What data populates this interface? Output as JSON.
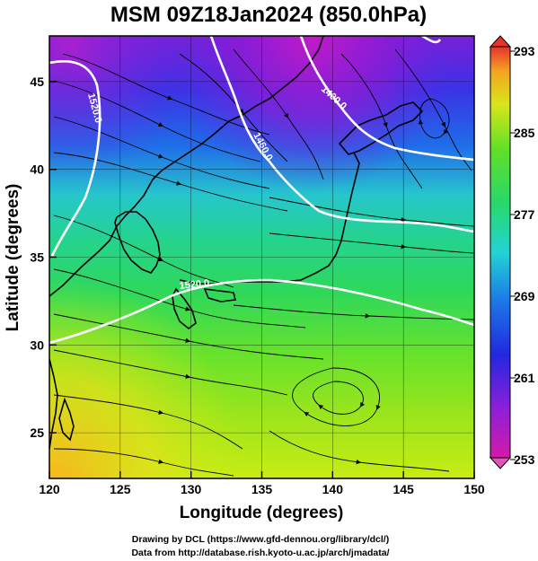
{
  "title": "MSM 09Z18Jan2024 (850.0hPa)",
  "x_axis": {
    "label": "Longitude (degrees)",
    "range": [
      120,
      150
    ],
    "ticks": [
      "120",
      "125",
      "130",
      "135",
      "140",
      "145",
      "150"
    ],
    "tick_values": [
      120,
      125,
      130,
      135,
      140,
      145,
      150
    ]
  },
  "y_axis": {
    "label": "Latitude  (degrees)",
    "range": [
      22.4,
      47.6
    ],
    "ticks": [
      "25",
      "30",
      "35",
      "40",
      "45"
    ],
    "tick_values": [
      25,
      30,
      35,
      40,
      45
    ]
  },
  "colorbar": {
    "range": [
      253,
      293
    ],
    "ticks": [
      "293",
      "285",
      "277",
      "269",
      "261",
      "253"
    ],
    "tick_values": [
      293,
      285,
      277,
      269,
      261,
      253
    ]
  },
  "contours": [
    {
      "label": "1520.0"
    },
    {
      "label": "1460.0"
    },
    {
      "label": "1400.0"
    },
    {
      "label": "1520.0"
    }
  ],
  "credits": {
    "line1": "Drawing by DCL (https://www.gfd-dennou.org/library/dcl/)",
    "line2": "Data from http://database.rish.kyoto-u.ac.jp/arch/jmadata/"
  },
  "colors": {
    "line_color": "#000000",
    "contour_color": "#ffffff",
    "background": "#ffffff"
  }
}
